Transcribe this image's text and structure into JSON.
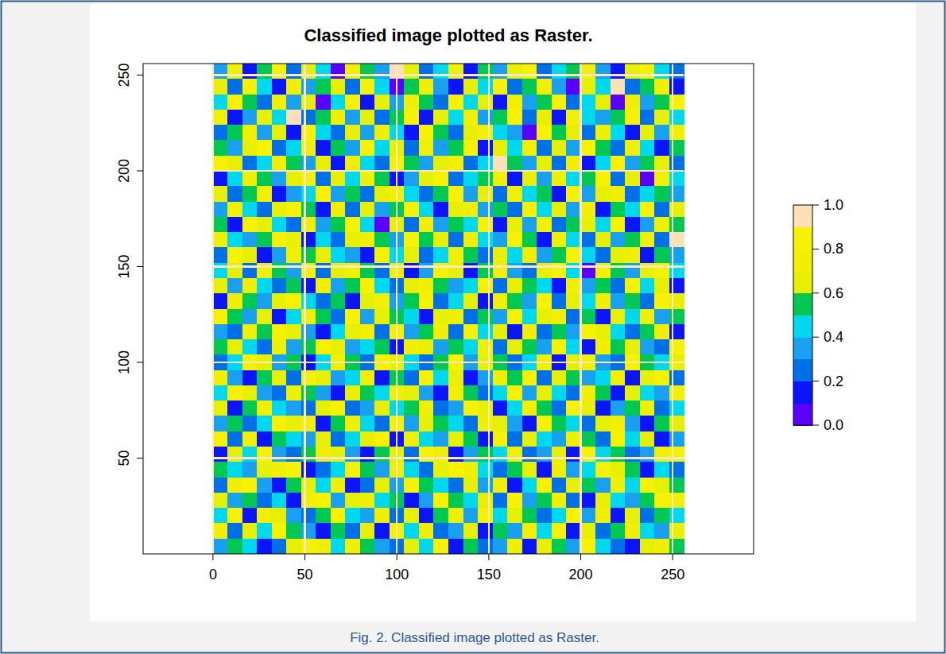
{
  "chart_data": {
    "type": "heatmap",
    "title": "Classified image plotted as Raster.",
    "caption": "Fig. 2. Classified image plotted as Raster.",
    "xlim": [
      -38,
      294
    ],
    "ylim": [
      0,
      256
    ],
    "xticks": [
      0,
      50,
      100,
      150,
      200,
      250
    ],
    "yticks": [
      50,
      100,
      150,
      200,
      250
    ],
    "grid": true,
    "cells": {
      "x_edges": [
        0,
        8,
        16,
        24,
        32,
        40,
        48,
        56,
        64,
        72,
        80,
        88,
        96,
        104,
        112,
        120,
        128,
        136,
        144,
        152,
        160,
        168,
        176,
        184,
        192,
        200,
        208,
        216,
        224,
        232,
        240,
        248,
        256
      ],
      "y_edges": [
        256,
        248,
        240,
        232,
        224,
        216,
        208,
        200,
        192,
        184,
        176,
        168,
        160,
        152,
        144,
        136,
        128,
        120,
        112,
        104,
        96,
        88,
        80,
        72,
        64,
        56,
        48,
        40,
        32,
        24,
        16,
        8,
        0
      ],
      "values": [
        [
          0.3,
          0.7,
          0.1,
          0.5,
          0.8,
          0.2,
          0.6,
          0.4,
          0,
          0.7,
          0.5,
          0.3,
          0.9,
          0.6,
          0.2,
          0.4,
          0.7,
          0.1,
          0.5,
          0.3,
          0.6,
          0.8,
          0.2,
          0.4,
          0.5,
          0.7,
          0.3,
          0.1,
          0.6,
          0.8,
          0.4,
          0.2
        ],
        [
          0.6,
          0.2,
          0.8,
          0.4,
          0.1,
          0.7,
          0.3,
          0.5,
          0.6,
          0.2,
          0.8,
          0.4,
          0,
          0.5,
          0.7,
          0.3,
          0.1,
          0.6,
          0.4,
          0.8,
          0.2,
          0.5,
          0.7,
          0.3,
          0,
          0.6,
          0.4,
          0.9,
          0.2,
          0.5,
          0.7,
          0.1
        ],
        [
          0.4,
          0.8,
          0.5,
          0.2,
          0.7,
          0.3,
          0.6,
          0,
          0.4,
          0.8,
          0.1,
          0.6,
          0.3,
          0.7,
          0.5,
          0.2,
          0.8,
          0.4,
          0.6,
          0.1,
          0.7,
          0.3,
          0.5,
          0.8,
          0.2,
          0.4,
          0.6,
          0,
          0.7,
          0.3,
          0.5,
          0.8
        ],
        [
          0.7,
          0.1,
          0.3,
          0.6,
          0.4,
          0.9,
          0.2,
          0.5,
          0.7,
          0.3,
          0.6,
          0.2,
          0.5,
          0.8,
          0.1,
          0.6,
          0.4,
          0.7,
          0.3,
          0.5,
          0.8,
          0.2,
          0.6,
          0.1,
          0.7,
          0.4,
          0.3,
          0.5,
          0.8,
          0.2,
          0.6,
          0.4
        ],
        [
          0.2,
          0.5,
          0.7,
          0.3,
          0.6,
          0.1,
          0.8,
          0.4,
          0.2,
          0.6,
          0.3,
          0.7,
          0.4,
          0.1,
          0.8,
          0.5,
          0.2,
          0.6,
          0.7,
          0.4,
          0.3,
          0,
          0.8,
          0.5,
          0.6,
          0.2,
          0.7,
          0.4,
          0.1,
          0.6,
          0.3,
          0.7
        ],
        [
          0.5,
          0.3,
          0.6,
          0.8,
          0.2,
          0.4,
          0.7,
          0.1,
          0.5,
          0.3,
          0.8,
          0.4,
          0.6,
          0.2,
          0.7,
          0.3,
          0.5,
          0.8,
          0.1,
          0.6,
          0.4,
          0.7,
          0.2,
          0.6,
          0.3,
          0.8,
          0.5,
          0.2,
          0.7,
          0.4,
          0.1,
          0.5
        ],
        [
          0.8,
          0.6,
          0.2,
          0.4,
          0.7,
          0.5,
          0.3,
          0.6,
          0.1,
          0.7,
          0.4,
          0.2,
          0.8,
          0.5,
          0.3,
          0.6,
          0.7,
          0.2,
          0.4,
          0.9,
          0.5,
          0.3,
          0.6,
          0.2,
          0.7,
          0.1,
          0.4,
          0.8,
          0.3,
          0.5,
          0.6,
          0.2
        ],
        [
          0.1,
          0.4,
          0.7,
          0.5,
          0.3,
          0.6,
          0.8,
          0.2,
          0.6,
          0.4,
          0.7,
          0.5,
          0.1,
          0.3,
          0.6,
          0.8,
          0.2,
          0.4,
          0.5,
          0.7,
          0.1,
          0.6,
          0.3,
          0.7,
          0.4,
          0.5,
          0.8,
          0.2,
          0.6,
          0,
          0.7,
          0.4
        ],
        [
          0.6,
          0.2,
          0.5,
          0.7,
          0.1,
          0.3,
          0.4,
          0.8,
          0.3,
          0.5,
          0.2,
          0.6,
          0.7,
          0.4,
          0.2,
          0.5,
          0.8,
          0.3,
          0.6,
          0.2,
          0.7,
          0.4,
          0.5,
          0.1,
          0.8,
          0.3,
          0.6,
          0.7,
          0.2,
          0.4,
          0.5,
          0.3
        ],
        [
          0.3,
          0.7,
          0.4,
          0.2,
          0.6,
          0.8,
          0.5,
          0.1,
          0.7,
          0.2,
          0.6,
          0.3,
          0.5,
          0.8,
          0.4,
          0.1,
          0.6,
          0.7,
          0.3,
          0.5,
          0.2,
          0.8,
          0.4,
          0.6,
          0.3,
          0.7,
          0.1,
          0.5,
          0.4,
          0.8,
          0.2,
          0.6
        ],
        [
          0.5,
          0.1,
          0.8,
          0.6,
          0.4,
          0.2,
          0.7,
          0.3,
          0.5,
          0.8,
          0.4,
          0,
          0.6,
          0.2,
          0.7,
          0.3,
          0.5,
          0.4,
          0.8,
          0.1,
          0.6,
          0.3,
          0.7,
          0.2,
          0.5,
          0.6,
          0.4,
          0.8,
          0.1,
          0.3,
          0.7,
          0.5
        ],
        [
          0.7,
          0.4,
          0.3,
          0.5,
          0.8,
          0.6,
          0.1,
          0.4,
          0.2,
          0.6,
          0.7,
          0.5,
          0.3,
          0.8,
          0.5,
          0.6,
          0.2,
          0.7,
          0.4,
          0.3,
          0.8,
          0.5,
          0.1,
          0.7,
          0.4,
          0.2,
          0.6,
          0.3,
          0.5,
          0.7,
          0.2,
          0.9
        ],
        [
          0.2,
          0.8,
          0.6,
          0.1,
          0.3,
          0.7,
          0.5,
          0.6,
          0.4,
          0.3,
          0.1,
          0.8,
          0.4,
          0.6,
          0.2,
          0.4,
          0.7,
          0.5,
          0.2,
          0.6,
          0.4,
          0.7,
          0.3,
          0.5,
          0.8,
          0.4,
          0.2,
          0.6,
          0.7,
          0.1,
          0.5,
          0.3
        ],
        [
          0.4,
          0.6,
          0.2,
          0.7,
          0.5,
          0.3,
          0.8,
          0.2,
          0.6,
          0.7,
          0.5,
          0.2,
          0.7,
          0.1,
          0.3,
          0.8,
          0.6,
          0.1,
          0.5,
          0.7,
          0.3,
          0.2,
          0.6,
          0.8,
          0.4,
          0,
          0.7,
          0.5,
          0.3,
          0.6,
          0.8,
          0.4
        ],
        [
          0.6,
          0.3,
          0.7,
          0.4,
          0.2,
          0.5,
          0.1,
          0.7,
          0.3,
          0.5,
          0.8,
          0.4,
          0.2,
          0.6,
          0.7,
          0.5,
          0.3,
          0.4,
          0.8,
          0.2,
          0.6,
          0.5,
          0.4,
          0.1,
          0.7,
          0.3,
          0.5,
          0.2,
          0.8,
          0.4,
          0.6,
          0.1
        ],
        [
          0.1,
          0.7,
          0.5,
          0.3,
          0.6,
          0.8,
          0.4,
          0.2,
          0.5,
          0.1,
          0.6,
          0.7,
          0.3,
          0.5,
          0.8,
          0.2,
          0.4,
          0.6,
          0.1,
          0.7,
          0.5,
          0.3,
          0.8,
          0.2,
          0.6,
          0.4,
          0.7,
          0.3,
          0.5,
          0.2,
          0.8,
          0.6
        ],
        [
          0.8,
          0.5,
          0.3,
          0.6,
          0.1,
          0.4,
          0.7,
          0.5,
          0.2,
          0.8,
          0.3,
          0.6,
          0.5,
          0.4,
          0.1,
          0.6,
          0.7,
          0.2,
          0.5,
          0.3,
          0.8,
          0.4,
          0.6,
          0.7,
          0.2,
          0.5,
          0.1,
          0.6,
          0.4,
          0.7,
          0.3,
          0.5
        ],
        [
          0.3,
          0.2,
          0.7,
          0.5,
          0.8,
          0.6,
          0.3,
          0.1,
          0.4,
          0.6,
          0.7,
          0.2,
          0.8,
          0.3,
          0.5,
          0.7,
          0.2,
          0.8,
          0.4,
          0.6,
          0.1,
          0.7,
          0.2,
          0.5,
          0.3,
          0.8,
          0.6,
          0.4,
          0.2,
          0.5,
          0.7,
          0.1
        ],
        [
          0.5,
          0.6,
          0.4,
          0.2,
          0.7,
          0.3,
          0.5,
          0.8,
          0.6,
          0.3,
          0.4,
          0.5,
          0.1,
          0.7,
          0.6,
          0.3,
          0.5,
          0.4,
          0.7,
          0.2,
          0.6,
          0.5,
          0.3,
          0.8,
          0.4,
          0.1,
          0.7,
          0.5,
          0.6,
          0.3,
          0.2,
          0.8
        ],
        [
          0.2,
          0.4,
          0.8,
          0.6,
          0.3,
          0.5,
          0.1,
          0.4,
          0.7,
          0.5,
          0.2,
          0.8,
          0.6,
          0.4,
          0.2,
          0.5,
          0.8,
          0.3,
          0.6,
          0.5,
          0.2,
          0.4,
          0.7,
          0.1,
          0.6,
          0.7,
          0.3,
          0.2,
          0.8,
          0.5,
          0.4,
          0.6
        ],
        [
          0.7,
          0.3,
          0.1,
          0.5,
          0.6,
          0.2,
          0.8,
          0.6,
          0.3,
          0.4,
          0.7,
          0.1,
          0.5,
          0.2,
          0.8,
          0.4,
          0.6,
          0.1,
          0.3,
          0.7,
          0.5,
          0.8,
          0.2,
          0.6,
          0.5,
          0.3,
          0.4,
          0.7,
          0.1,
          0.6,
          0.8,
          0.2
        ],
        [
          0.4,
          0.8,
          0.6,
          0.3,
          0.2,
          0.7,
          0.5,
          0.3,
          0.1,
          0.6,
          0.5,
          0.4,
          0.7,
          0.6,
          0.3,
          0.1,
          0.7,
          0.5,
          0.2,
          0.4,
          0.8,
          0.3,
          0.6,
          0.4,
          0.2,
          0.7,
          0.5,
          0.1,
          0.6,
          0.4,
          0.3,
          0.7
        ],
        [
          0.6,
          0.1,
          0.5,
          0.7,
          0.4,
          0.3,
          0.2,
          0.6,
          0.8,
          0.2,
          0.3,
          0.6,
          0.4,
          0.5,
          0.7,
          0.2,
          0.3,
          0.8,
          0.6,
          0.1,
          0.4,
          0.7,
          0.5,
          0.2,
          0.8,
          0.6,
          0.1,
          0.3,
          0.5,
          0.7,
          0.2,
          0.4
        ],
        [
          0.3,
          0.5,
          0.2,
          0.4,
          0.8,
          0.6,
          0.7,
          0.1,
          0.5,
          0.7,
          0.4,
          0.2,
          0.8,
          0.3,
          0.6,
          0.5,
          0.4,
          0.2,
          0.7,
          0.6,
          0.3,
          0.1,
          0.8,
          0.5,
          0.4,
          0.2,
          0.6,
          0.7,
          0.3,
          0.1,
          0.5,
          0.6
        ],
        [
          0.8,
          0.2,
          0.7,
          0.1,
          0.5,
          0.4,
          0.3,
          0.6,
          0.2,
          0.4,
          0.6,
          0.8,
          0.1,
          0.7,
          0.4,
          0.3,
          0.6,
          0.5,
          0.1,
          0.8,
          0.2,
          0.6,
          0.4,
          0.3,
          0.7,
          0.5,
          0.2,
          0.8,
          0.4,
          0.6,
          0.1,
          0.3
        ],
        [
          0.1,
          0.6,
          0.4,
          0.8,
          0.3,
          0.2,
          0.5,
          0.7,
          0.6,
          0.3,
          0.1,
          0.5,
          0.6,
          0.2,
          0.8,
          0.7,
          0.1,
          0.3,
          0.5,
          0.4,
          0.7,
          0.2,
          0.3,
          0.6,
          0.1,
          0.8,
          0.4,
          0.5,
          0.2,
          0.3,
          0.7,
          0.8
        ],
        [
          0.5,
          0.4,
          0.3,
          0.6,
          0.7,
          0.8,
          0.1,
          0.2,
          0.4,
          0.8,
          0.5,
          0.3,
          0.7,
          0.4,
          0.2,
          0.6,
          0.8,
          0.7,
          0.4,
          0.2,
          0.5,
          0.6,
          0.1,
          0.7,
          0.3,
          0.4,
          0.8,
          0.6,
          0.5,
          0.1,
          0.4,
          0.2
        ],
        [
          0.2,
          0.7,
          0.8,
          0.3,
          0.1,
          0.5,
          0.6,
          0.4,
          0.7,
          0.1,
          0.2,
          0.6,
          0.3,
          0.8,
          0.5,
          0.4,
          0.2,
          0.6,
          0.3,
          0.7,
          0.1,
          0.4,
          0.8,
          0.2,
          0.6,
          0.5,
          0.3,
          0.7,
          0.4,
          0.8,
          0.6,
          0.5
        ],
        [
          0.6,
          0.3,
          0.5,
          0.2,
          0.4,
          0.1,
          0.7,
          0.8,
          0.3,
          0.6,
          0.7,
          0.4,
          0.5,
          0.1,
          0.3,
          0.8,
          0.5,
          0.4,
          0.6,
          0.2,
          0.8,
          0.3,
          0.5,
          0.7,
          0.2,
          0.1,
          0.6,
          0.4,
          0.3,
          0.5,
          0.8,
          0.7
        ],
        [
          0.4,
          0.8,
          0.1,
          0.7,
          0.6,
          0.3,
          0.2,
          0.5,
          0.8,
          0.4,
          0.3,
          0.7,
          0.2,
          0.6,
          0.1,
          0.5,
          0.7,
          0.3,
          0.8,
          0.4,
          0.6,
          0.5,
          0.2,
          0.4,
          0.8,
          0.3,
          0.7,
          0.1,
          0.6,
          0.2,
          0.5,
          0.4
        ],
        [
          0.7,
          0.2,
          0.6,
          0.4,
          0.8,
          0.5,
          0.3,
          0.1,
          0.5,
          0.2,
          0.6,
          0.1,
          0.8,
          0.4,
          0.7,
          0.2,
          0.3,
          0.6,
          0.1,
          0.5,
          0.3,
          0.7,
          0.4,
          0.8,
          0.1,
          0.6,
          0.2,
          0.5,
          0.7,
          0.4,
          0.3,
          0.6
        ],
        [
          0.3,
          0.5,
          0.4,
          0.1,
          0.2,
          0.6,
          0.8,
          0.7,
          0.4,
          0.7,
          0.5,
          0.3,
          0.2,
          0.6,
          0.4,
          0.8,
          0.1,
          0.5,
          0.2,
          0.3,
          0.7,
          0.1,
          0.6,
          0.5,
          0.3,
          0.8,
          0.4,
          0.2,
          0.1,
          0.6,
          0.7,
          0.5
        ]
      ]
    },
    "colorbar": {
      "range": [
        0,
        1
      ],
      "breaks": [
        0,
        0.1,
        0.2,
        0.3,
        0.4,
        0.5,
        0.6,
        0.7,
        0.8,
        0.9,
        1
      ],
      "colors": [
        "#5a00ff",
        "#0a14ff",
        "#0070e8",
        "#1aa0f0",
        "#00d8f0",
        "#00c853",
        "#e6f000",
        "#f0f000",
        "#f7f200",
        "#fde0b8"
      ],
      "ticks": [
        {
          "value": 0,
          "label": "0.0"
        },
        {
          "value": 0.2,
          "label": "0.2"
        },
        {
          "value": 0.4,
          "label": "0.4"
        },
        {
          "value": 0.6,
          "label": "0.6"
        },
        {
          "value": 0.8,
          "label": "0.8"
        },
        {
          "value": 1,
          "label": "1.0"
        }
      ]
    }
  }
}
